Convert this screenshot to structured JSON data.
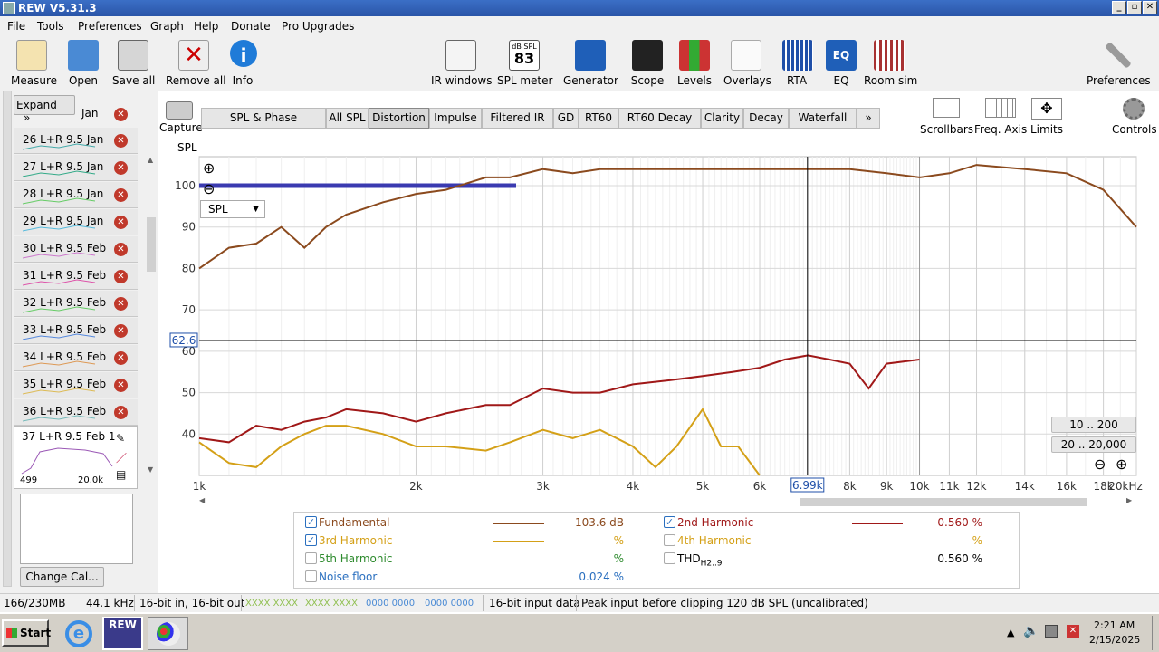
{
  "window": {
    "title": "REW V5.31.3",
    "min": "_",
    "max": "▫",
    "close": "✕"
  },
  "menu": [
    "File",
    "Tools",
    "Preferences",
    "Graph",
    "Help",
    "Donate",
    "Pro Upgrades"
  ],
  "toolbar_left": [
    {
      "label": "Measure",
      "icon": "measure-icon"
    },
    {
      "label": "Open",
      "icon": "folder-icon"
    },
    {
      "label": "Save all",
      "icon": "save-icon"
    },
    {
      "label": "Remove all",
      "icon": "remove-all-icon"
    },
    {
      "label": "Info",
      "icon": "info-icon"
    }
  ],
  "toolbar_center": [
    {
      "label": "IR windows",
      "icon": "ir-windows-icon"
    },
    {
      "label": "SPL meter",
      "icon": "spl-meter-icon",
      "badge_top": "dB SPL",
      "badge_value": "83"
    },
    {
      "label": "Generator",
      "icon": "generator-icon"
    },
    {
      "label": "Scope",
      "icon": "scope-icon"
    },
    {
      "label": "Levels",
      "icon": "levels-icon"
    },
    {
      "label": "Overlays",
      "icon": "overlays-icon"
    },
    {
      "label": "RTA",
      "icon": "rta-icon"
    },
    {
      "label": "EQ",
      "icon": "eq-icon"
    },
    {
      "label": "Room sim",
      "icon": "room-sim-icon"
    }
  ],
  "preferences_label": "Preferences",
  "left_panel": {
    "expand_label": "Expand",
    "expand_chevron": "»",
    "partial_label": "Jan",
    "measurements": [
      "26 L+R 9.5 Jan",
      "27 L+R 9.5 Jan",
      "28 L+R 9.5 Jan",
      "29 L+R 9.5 Jan",
      "30 L+R 9.5 Feb",
      "31 L+R 9.5 Feb",
      "32 L+R 9.5 Feb",
      "33 L+R 9.5 Feb",
      "34 L+R 9.5 Feb",
      "35 L+R 9.5 Feb",
      "36 L+R 9.5 Feb"
    ],
    "selected": {
      "label": "37 L+R 9.5 Feb 1",
      "range_low": "499",
      "range_high": "20.0k"
    },
    "change_cal_label": "Change Cal..."
  },
  "capture_label": "Capture",
  "tabs": [
    "SPL & Phase",
    "All SPL",
    "Distortion",
    "Impulse",
    "Filtered IR",
    "GD",
    "RT60",
    "RT60 Decay",
    "Clarity",
    "Decay",
    "Waterfall",
    "»"
  ],
  "active_tab": "Distortion",
  "right_tools": [
    {
      "label": "Scrollbars"
    },
    {
      "label": "Freq. Axis"
    },
    {
      "label": "Limits"
    },
    {
      "label": "Controls"
    }
  ],
  "graph": {
    "y_axis_label": "SPL",
    "y_ticks": [
      "100",
      "90",
      "80",
      "70",
      "60",
      "50",
      "40"
    ],
    "x_ticks": [
      "1k",
      "2k",
      "3k",
      "4k",
      "5k",
      "6k",
      "8k",
      "9k",
      "10k",
      "11k",
      "12k",
      "14k",
      "16k",
      "18k",
      "20kHz"
    ],
    "cursor_x": "6.99k",
    "cursor_y": "62.6",
    "dropdown": "SPL",
    "range_buttons": [
      "10 .. 200",
      "20 .. 20,000"
    ],
    "zoom_in": "⊕",
    "zoom_out": "⊖"
  },
  "chart_data": {
    "type": "line",
    "xlabel": "",
    "ylabel": "SPL",
    "x_scale": "log",
    "xlim": [
      1000,
      20000
    ],
    "ylim": [
      30,
      107
    ],
    "series": [
      {
        "name": "Fundamental",
        "color": "#8b4a1e",
        "x": [
          1000,
          1100,
          1200,
          1300,
          1400,
          1500,
          1600,
          1800,
          2000,
          2200,
          2500,
          2700,
          3000,
          3300,
          3600,
          4000,
          4500,
          5000,
          6000,
          7000,
          8000,
          9000,
          10000,
          11000,
          12000,
          14000,
          16000,
          18000,
          20000
        ],
        "y": [
          80,
          85,
          86,
          90,
          85,
          90,
          93,
          96,
          98,
          99,
          102,
          102,
          104,
          103,
          104,
          104,
          104,
          104,
          104,
          104,
          104,
          103,
          102,
          103,
          105,
          104,
          103,
          99,
          90
        ]
      },
      {
        "name": "2nd Harmonic",
        "color": "#a01818",
        "x": [
          1000,
          1100,
          1200,
          1300,
          1400,
          1500,
          1600,
          1800,
          2000,
          2200,
          2500,
          2700,
          3000,
          3300,
          3600,
          4000,
          4500,
          5000,
          5500,
          6000,
          6500,
          7000,
          7500,
          8000,
          8500,
          9000,
          10000
        ],
        "y": [
          39,
          38,
          42,
          41,
          43,
          44,
          46,
          45,
          43,
          45,
          47,
          47,
          51,
          50,
          50,
          52,
          53,
          54,
          55,
          56,
          58,
          59,
          58,
          57,
          51,
          57,
          58
        ]
      },
      {
        "name": "3rd Harmonic",
        "color": "#d4a017",
        "x": [
          1000,
          1100,
          1200,
          1300,
          1400,
          1500,
          1600,
          1800,
          2000,
          2200,
          2500,
          2700,
          3000,
          3300,
          3600,
          4000,
          4300,
          4600,
          5000,
          5300,
          5600,
          6000
        ],
        "y": [
          38,
          33,
          32,
          37,
          40,
          42,
          42,
          40,
          37,
          37,
          36,
          38,
          41,
          39,
          41,
          37,
          32,
          37,
          46,
          37,
          37,
          30
        ]
      }
    ]
  },
  "legend": [
    {
      "label": "Fundamental",
      "checked": true,
      "value": "103.6 dB",
      "color": "#8b4a1e",
      "line": true
    },
    {
      "label": "2nd Harmonic",
      "checked": true,
      "value": "0.560 %",
      "color": "#a01818",
      "line": true
    },
    {
      "label": "3rd Harmonic",
      "checked": true,
      "value": "%",
      "color": "#d4a017",
      "line": true
    },
    {
      "label": "4th Harmonic",
      "checked": false,
      "value": "%",
      "color": "#d4a017",
      "line": false
    },
    {
      "label": "5th Harmonic",
      "checked": false,
      "value": "%",
      "color": "#2e8b2e",
      "line": false
    },
    {
      "label": "THD",
      "sub": "H2..9",
      "checked": false,
      "value": "0.560 %",
      "color": "#000000",
      "line": false
    },
    {
      "label": "Noise floor",
      "checked": false,
      "value": "0.024 %",
      "color": "#2a6fbf",
      "line": false
    }
  ],
  "status": [
    "166/230MB",
    "44.1 kHz",
    "16-bit in, 16-bit out",
    "XXXX XXXX",
    "XXXX XXXX",
    "0000 0000",
    "0000 0000",
    "16-bit input data",
    "Peak input before clipping 120 dB SPL (uncalibrated)"
  ],
  "taskbar": {
    "start": "Start",
    "time": "2:21 AM",
    "date": "2/15/2025",
    "app_label": "REW"
  }
}
